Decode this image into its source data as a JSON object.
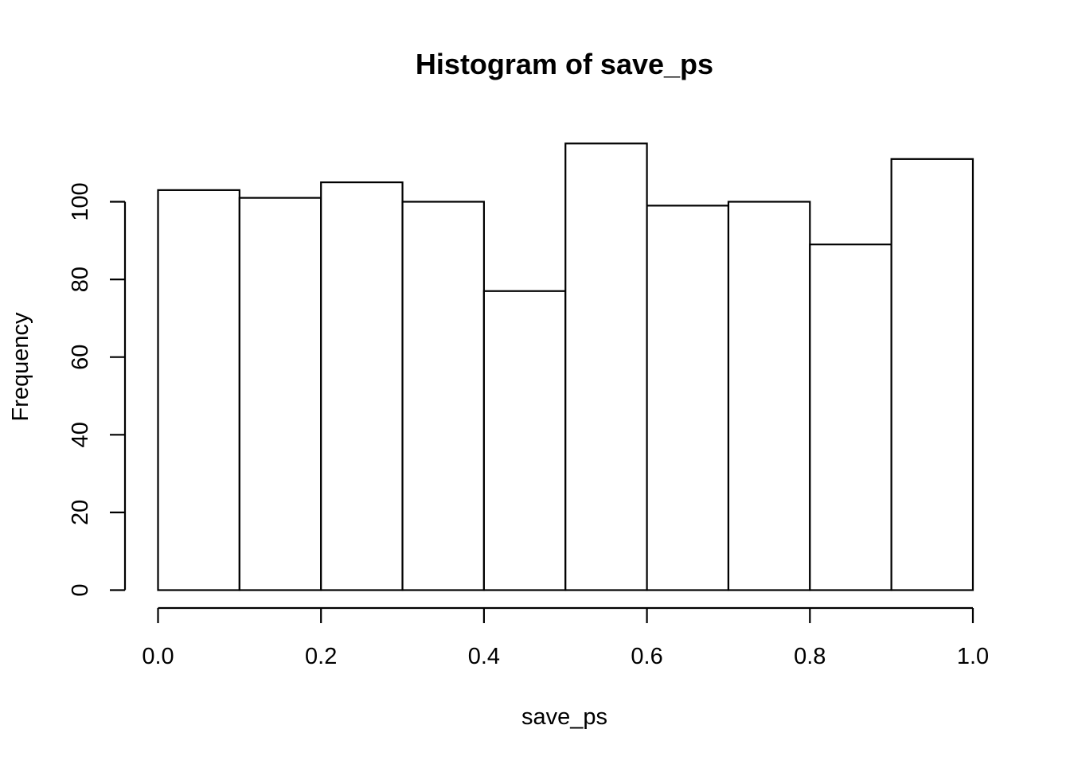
{
  "chart_data": {
    "type": "bar",
    "title": "Histogram of save_ps",
    "xlabel": "save_ps",
    "ylabel": "Frequency",
    "bins": [
      {
        "start": 0.0,
        "end": 0.1,
        "value": 103
      },
      {
        "start": 0.1,
        "end": 0.2,
        "value": 101
      },
      {
        "start": 0.2,
        "end": 0.3,
        "value": 105
      },
      {
        "start": 0.3,
        "end": 0.4,
        "value": 100
      },
      {
        "start": 0.4,
        "end": 0.5,
        "value": 77
      },
      {
        "start": 0.5,
        "end": 0.6,
        "value": 115
      },
      {
        "start": 0.6,
        "end": 0.7,
        "value": 99
      },
      {
        "start": 0.7,
        "end": 0.8,
        "value": 100
      },
      {
        "start": 0.8,
        "end": 0.9,
        "value": 89
      },
      {
        "start": 0.9,
        "end": 1.0,
        "value": 111
      }
    ],
    "xlim": [
      0.0,
      1.0
    ],
    "ylim": [
      0,
      115
    ],
    "x_ticks": [
      0.0,
      0.2,
      0.4,
      0.6,
      0.8,
      1.0
    ],
    "x_tick_labels": [
      "0.0",
      "0.2",
      "0.4",
      "0.6",
      "0.8",
      "1.0"
    ],
    "y_ticks": [
      0,
      20,
      40,
      60,
      80,
      100
    ],
    "y_tick_labels": [
      "0",
      "20",
      "40",
      "60",
      "80",
      "100"
    ],
    "grid": false,
    "legend": "none",
    "bar_fill": "#ffffff",
    "bar_stroke": "#000000"
  }
}
